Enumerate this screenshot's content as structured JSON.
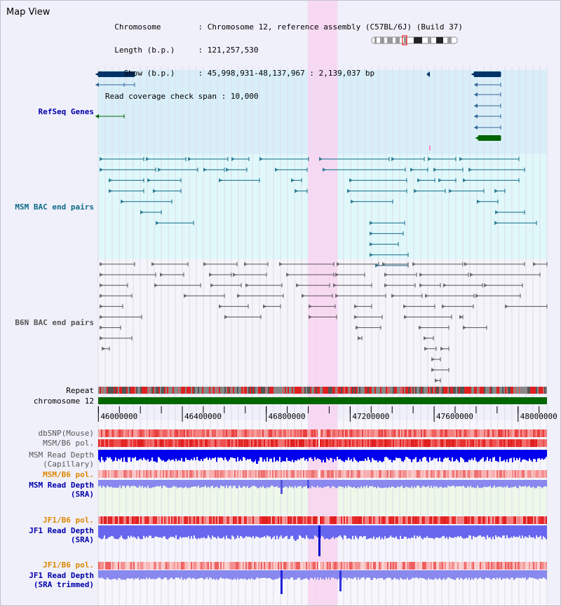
{
  "title": "Map View",
  "info": {
    "chromosome_key": "Chromosome",
    "chromosome_val": "Chromosome 12, reference assembly (C57BL/6J) (Build 37)",
    "length_key": "Length (b.p.)",
    "length_val": "121,257,530",
    "show_key": "Show (b.p.)",
    "show_val": "45,998,931-48,137,967 : 2,139,037 bp",
    "coverage_key": "Read coverage check span",
    "coverage_val": "10,000"
  },
  "tracks": {
    "refseq": "RefSeq Genes",
    "msm_bac": "MSM BAC end pairs",
    "b6n_bac": "B6N BAC end pairs",
    "repeat": "Repeat",
    "chromosome": "chromosome 12",
    "dbsnp": "dbSNP(Mouse)",
    "msm_b6_pol": "MSM/B6 pol.",
    "msm_depth_cap_1": "MSM Read Depth",
    "msm_depth_cap_2": "(Capillary)",
    "msm_b6_pol_2": "MSM/B6 pol.",
    "msm_depth_sra_1": "MSM Read Depth",
    "msm_depth_sra_2": "(SRA)",
    "jf1_b6_pol": "JF1/B6 pol.",
    "jf1_depth_sra_1": "JF1 Read Depth",
    "jf1_depth_sra_2": "(SRA)",
    "jf1_b6_pol_2": "JF1/B6 pol.",
    "jf1_depth_trim_1": "JF1 Read Depth",
    "jf1_depth_trim_2": "(SRA trimmed)"
  },
  "axis": {
    "unit": "bp",
    "ticks": [
      "46000000",
      "46400000",
      "46800000",
      "47200000",
      "47600000",
      "48000000"
    ],
    "tick_values": [
      46000000,
      46400000,
      46800000,
      47200000,
      47600000,
      48000000
    ],
    "range": [
      45998931,
      48137967
    ]
  },
  "highlight_region": [
    46998000,
    47140000
  ],
  "colors": {
    "background": "#f0f0fa",
    "refseq_bg": "#d8effa",
    "msm_bg": "#e0f8fa",
    "b6n_bg": "#f4f4fa",
    "highlight": "#f8d4f0",
    "refseq_gene": "#003366",
    "refseq_green": "#006600",
    "msm_pair": "#0d6a86",
    "b6n_pair": "#555555",
    "chromosome": "#006600",
    "label_blue": "#0000aa",
    "label_teal": "#0d6a86",
    "label_orange": "#dd8800",
    "depth_dark": "#0000ee",
    "depth_light": "#7777ee"
  }
}
